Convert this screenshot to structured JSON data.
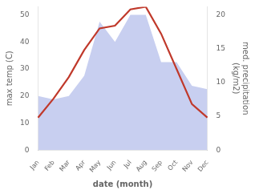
{
  "chart_data": {
    "type": "line",
    "categories": [
      "Jan",
      "Feb",
      "Mar",
      "Apr",
      "May",
      "Jun",
      "Jul",
      "Aug",
      "Sep",
      "Oct",
      "Nov",
      "Dec"
    ],
    "series": [
      {
        "type": "line",
        "color": "#c0392b",
        "values": [
          12,
          19,
          27,
          37,
          45,
          46,
          52,
          53,
          43,
          30,
          17,
          12
        ]
      },
      {
        "type": "area",
        "color": "#c8cff0",
        "axis": "y2",
        "values": [
          8,
          7.5,
          8,
          11,
          19,
          16,
          20,
          20,
          13,
          13,
          9.5,
          9
        ]
      }
    ],
    "xlabel": "date (month)",
    "ylabel": "max temp (C)",
    "y2label": "med. precipitation\n(kg/m2)",
    "ylim": [
      0,
      53
    ],
    "yticks": [
      0,
      10,
      20,
      30,
      40,
      50
    ],
    "y2lim": [
      0,
      21.2
    ],
    "y2ticks": [
      0,
      5,
      10,
      15,
      20
    ],
    "grid": false
  }
}
